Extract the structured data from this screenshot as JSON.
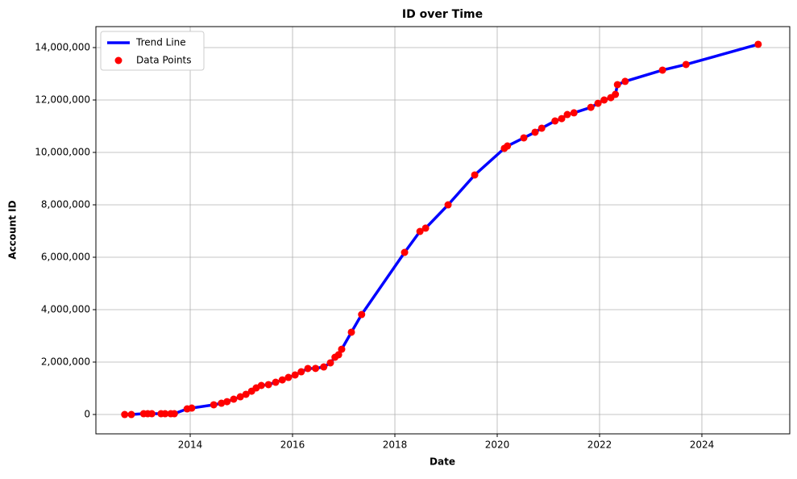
{
  "chart_data": {
    "type": "line",
    "title": "ID over Time",
    "x_label": "Date",
    "y_label": "Account ID",
    "x": [
      2012.72,
      2012.85,
      2013.09,
      2013.17,
      2013.25,
      2013.43,
      2013.51,
      2013.62,
      2013.69,
      2013.94,
      2014.03,
      2014.46,
      2014.61,
      2014.72,
      2014.85,
      2014.98,
      2015.09,
      2015.2,
      2015.29,
      2015.39,
      2015.53,
      2015.67,
      2015.8,
      2015.92,
      2016.05,
      2016.17,
      2016.3,
      2016.45,
      2016.61,
      2016.74,
      2016.83,
      2016.9,
      2016.96,
      2017.15,
      2017.35,
      2018.19,
      2018.49,
      2018.6,
      2019.04,
      2019.56,
      2020.14,
      2020.2,
      2020.52,
      2020.74,
      2020.87,
      2021.13,
      2021.26,
      2021.37,
      2021.5,
      2021.83,
      2021.97,
      2022.09,
      2022.22,
      2022.31,
      2022.35,
      2022.5,
      2023.23,
      2023.69,
      2025.1
    ],
    "series": [
      {
        "name": "Trend Line",
        "color": "#0000ff",
        "style": "line",
        "values": [
          0,
          0,
          30000,
          30000,
          30000,
          30000,
          30000,
          30000,
          30000,
          215000,
          246000,
          370000,
          430000,
          490000,
          585000,
          677000,
          770000,
          890000,
          1015000,
          1108000,
          1140000,
          1230000,
          1320000,
          1415000,
          1510000,
          1630000,
          1755000,
          1760000,
          1815000,
          1970000,
          2185000,
          2280000,
          2490000,
          3140000,
          3815000,
          6185000,
          6985000,
          7110000,
          8000000,
          9140000,
          10155000,
          10245000,
          10555000,
          10770000,
          10925000,
          11200000,
          11290000,
          11445000,
          11510000,
          11720000,
          11875000,
          12000000,
          12090000,
          12215000,
          12585000,
          12710000,
          13140000,
          13355000,
          14125000
        ]
      },
      {
        "name": "Data Points",
        "color": "#ff0000",
        "style": "points",
        "values": [
          0,
          0,
          30000,
          30000,
          30000,
          30000,
          30000,
          30000,
          30000,
          215000,
          246000,
          370000,
          430000,
          490000,
          585000,
          677000,
          770000,
          890000,
          1015000,
          1108000,
          1140000,
          1230000,
          1320000,
          1415000,
          1510000,
          1630000,
          1755000,
          1760000,
          1815000,
          1970000,
          2185000,
          2280000,
          2490000,
          3140000,
          3815000,
          6185000,
          6985000,
          7110000,
          8000000,
          9140000,
          10155000,
          10245000,
          10555000,
          10770000,
          10925000,
          11200000,
          11290000,
          11445000,
          11510000,
          11720000,
          11875000,
          12000000,
          12090000,
          12215000,
          12585000,
          12710000,
          13140000,
          13355000,
          14125000
        ]
      }
    ],
    "xlim": [
      2012.157,
      2025.717
    ],
    "xticks": [
      2014,
      2016,
      2018,
      2020,
      2022,
      2024
    ],
    "ylim": [
      -738000,
      14800000
    ],
    "yticks": [
      0,
      {
        "value": 2000000,
        "label": "2,000,000"
      },
      {
        "value": 4000000,
        "label": "4,000,000"
      },
      {
        "value": 6000000,
        "label": "6,000,000"
      },
      {
        "value": 8000000,
        "label": "8,000,000"
      },
      {
        "value": 10000000,
        "label": "10,000,000"
      },
      {
        "value": 12000000,
        "label": "12,000,000"
      },
      {
        "value": 14000000,
        "label": "14,000,000"
      }
    ],
    "grid": true,
    "legend": "upper-left"
  }
}
